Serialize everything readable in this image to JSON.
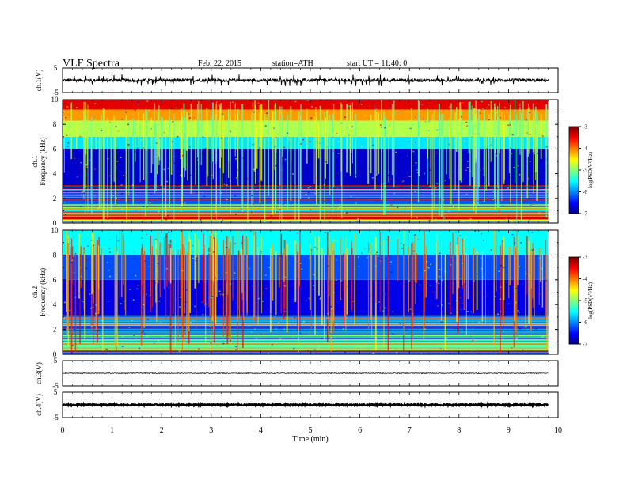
{
  "header": {
    "title": "VLF  Spectra",
    "date": "Feb. 22, 2015",
    "station": "station=ATH",
    "start": "start  UT  =   11:40: 0"
  },
  "chart_data": [
    {
      "type": "line",
      "panel": "ch1-waveform",
      "ylabel": "ch.1(V)",
      "ylim": [
        -5,
        5
      ],
      "yticks": [
        "5",
        "-5"
      ],
      "x_range_min": [
        0,
        9.8
      ],
      "baseline": 0,
      "amplitude": 0.6,
      "color": "#000000"
    },
    {
      "type": "heatmap",
      "panel": "ch1-spectrogram",
      "ylabel": [
        "ch.1",
        "Frequency  (kHz)"
      ],
      "ylim": [
        0,
        10
      ],
      "yticks": [
        "0",
        "2",
        "4",
        "6",
        "8",
        "10"
      ],
      "x_range_min": [
        0,
        9.8
      ],
      "colorbar": {
        "label": "log(PSD(V²/Hz)",
        "range": [
          -7,
          -3
        ],
        "ticks": [
          "-3",
          "-4",
          "-5",
          "-6",
          "-7"
        ]
      },
      "bands_log_psd": [
        {
          "f_from": 0.0,
          "f_to": 0.3,
          "value": -4.6
        },
        {
          "f_from": 0.3,
          "f_to": 0.7,
          "value": -3.3
        },
        {
          "f_from": 0.7,
          "f_to": 1.2,
          "value": -5.5
        },
        {
          "f_from": 1.2,
          "f_to": 2.4,
          "value": -6.1
        },
        {
          "f_from": 2.4,
          "f_to": 6.0,
          "value": -6.7
        },
        {
          "f_from": 6.0,
          "f_to": 7.0,
          "value": -5.6
        },
        {
          "f_from": 7.0,
          "f_to": 8.3,
          "value": -4.8
        },
        {
          "f_from": 8.3,
          "f_to": 9.2,
          "value": -4.1
        },
        {
          "f_from": 9.2,
          "f_to": 10.0,
          "value": -3.4
        }
      ]
    },
    {
      "type": "heatmap",
      "panel": "ch2-spectrogram",
      "ylabel": [
        "ch.2",
        "Frequency  (kHz)"
      ],
      "ylim": [
        0,
        10
      ],
      "yticks": [
        "0",
        "2",
        "4",
        "6",
        "8",
        "10"
      ],
      "x_range_min": [
        0,
        9.8
      ],
      "colorbar": {
        "label": "log(PSD(V²/Hz)",
        "range": [
          -7,
          -3
        ],
        "ticks": [
          "-3",
          "-4",
          "-5",
          "-6",
          "-7"
        ]
      },
      "bands_log_psd": [
        {
          "f_from": 0.0,
          "f_to": 0.3,
          "value": -6.4
        },
        {
          "f_from": 0.3,
          "f_to": 1.7,
          "value": -5.1
        },
        {
          "f_from": 1.7,
          "f_to": 3.0,
          "value": -5.8
        },
        {
          "f_from": 3.0,
          "f_to": 6.0,
          "value": -6.6
        },
        {
          "f_from": 6.0,
          "f_to": 8.0,
          "value": -6.2
        },
        {
          "f_from": 8.0,
          "f_to": 10.0,
          "value": -5.5
        }
      ]
    },
    {
      "type": "line",
      "panel": "ch3-waveform",
      "ylabel": "ch.3(V)",
      "ylim": [
        -5,
        5
      ],
      "yticks": [
        "5",
        "-5"
      ],
      "x_range_min": [
        0,
        9.8
      ],
      "baseline": 0,
      "amplitude": 0.15,
      "color": "#000000"
    },
    {
      "type": "line",
      "panel": "ch4-waveform",
      "ylabel": "ch.4(V)",
      "ylim": [
        -5,
        5
      ],
      "yticks": [
        "5",
        "-5"
      ],
      "x_range_min": [
        0,
        9.8
      ],
      "baseline": 0,
      "amplitude": 0.3,
      "color": "#000000"
    }
  ],
  "x_axis": {
    "label": "Time  (min)",
    "range": [
      0,
      10
    ],
    "ticks": [
      "0",
      "1",
      "2",
      "3",
      "4",
      "5",
      "6",
      "7",
      "8",
      "9",
      "10"
    ]
  }
}
